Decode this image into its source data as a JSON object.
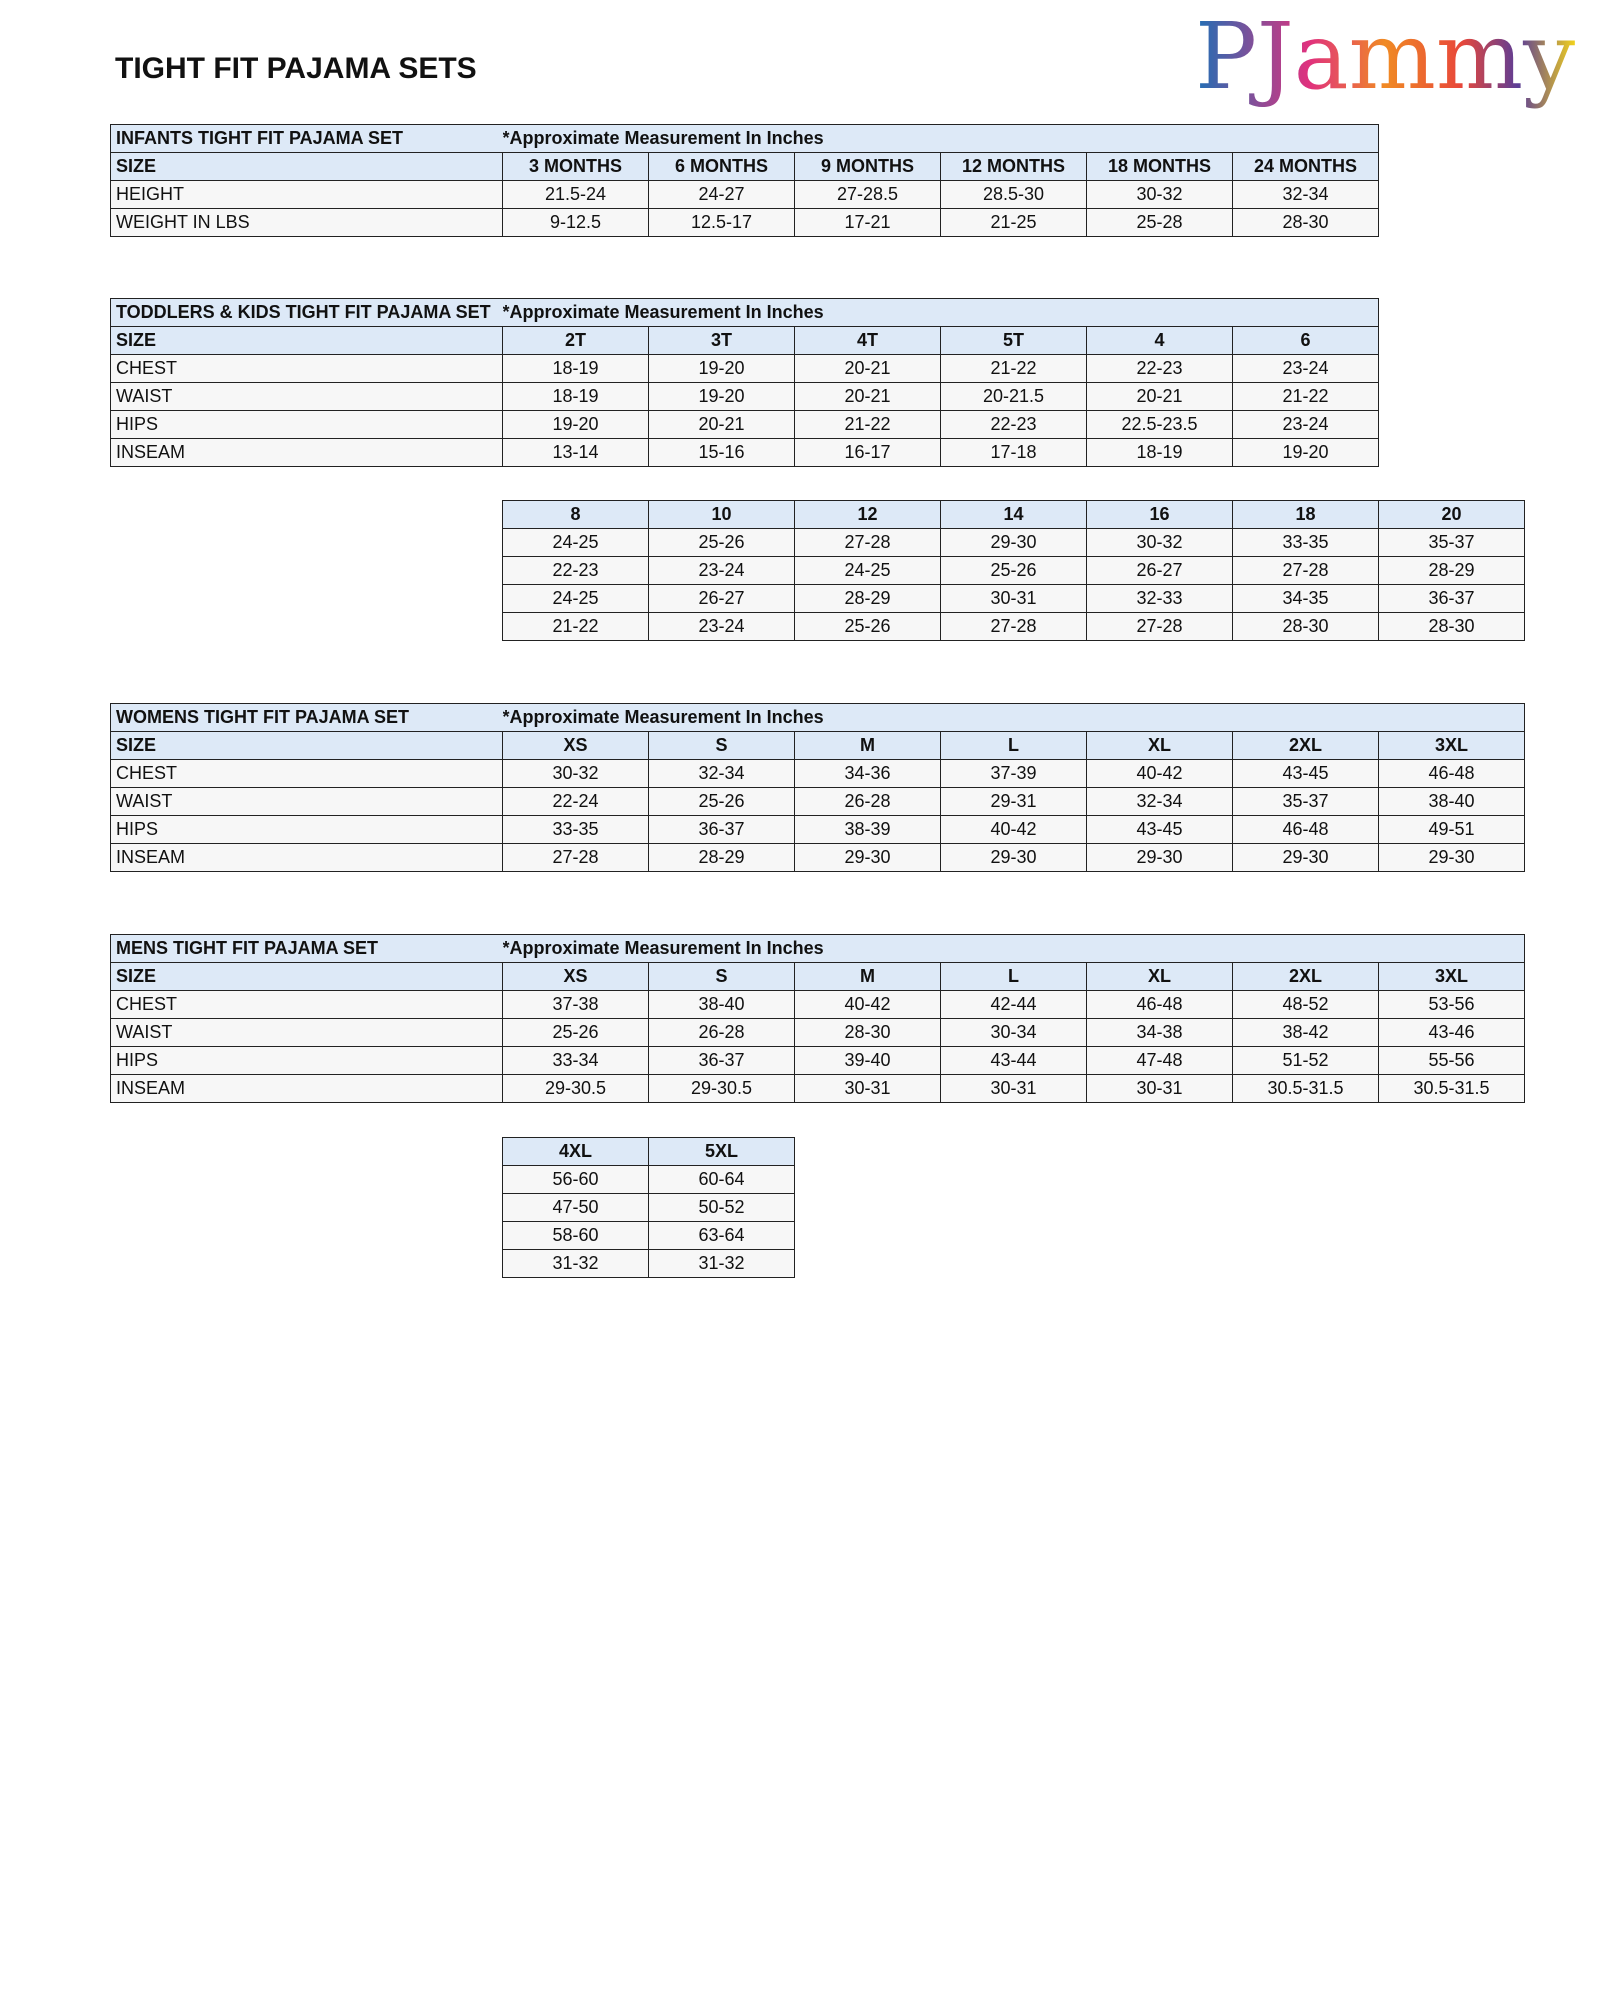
{
  "header": {
    "title": "TIGHT FIT PAJAMA SETS",
    "logo": "PJammy"
  },
  "tables": [
    {
      "title": "INFANTS TIGHT FIT PAJAMA SET",
      "note": "*Approximate Measurement In Inches",
      "header": [
        "SIZE",
        "3 MONTHS",
        "6 MONTHS",
        "9 MONTHS",
        "12 MONTHS",
        "18 MONTHS",
        "24 MONTHS"
      ],
      "rows": [
        [
          "HEIGHT",
          "21.5-24",
          "24-27",
          "27-28.5",
          "28.5-30",
          "30-32",
          "32-34"
        ],
        [
          "WEIGHT IN LBS",
          "9-12.5",
          "12.5-17",
          "17-21",
          "21-25",
          "25-28",
          "28-30"
        ]
      ]
    },
    {
      "title": "TODDLERS & KIDS TIGHT FIT PAJAMA SET",
      "note": "*Approximate Measurement In Inches",
      "header": [
        "SIZE",
        "2T",
        "3T",
        "4T",
        "5T",
        "4",
        "6"
      ],
      "rows": [
        [
          "CHEST",
          "18-19",
          "19-20",
          "20-21",
          "21-22",
          "22-23",
          "23-24"
        ],
        [
          "WAIST",
          "18-19",
          "19-20",
          "20-21",
          "20-21.5",
          "20-21",
          "21-22"
        ],
        [
          "HIPS",
          "19-20",
          "20-21",
          "21-22",
          "22-23",
          "22.5-23.5",
          "23-24"
        ],
        [
          "INSEAM",
          "13-14",
          "15-16",
          "16-17",
          "17-18",
          "18-19",
          "19-20"
        ]
      ]
    },
    {
      "header": [
        "8",
        "10",
        "12",
        "14",
        "16",
        "18",
        "20"
      ],
      "rows": [
        [
          "24-25",
          "25-26",
          "27-28",
          "29-30",
          "30-32",
          "33-35",
          "35-37"
        ],
        [
          "22-23",
          "23-24",
          "24-25",
          "25-26",
          "26-27",
          "27-28",
          "28-29"
        ],
        [
          "24-25",
          "26-27",
          "28-29",
          "30-31",
          "32-33",
          "34-35",
          "36-37"
        ],
        [
          "21-22",
          "23-24",
          "25-26",
          "27-28",
          "27-28",
          "28-30",
          "28-30"
        ]
      ]
    },
    {
      "title": "WOMENS TIGHT FIT PAJAMA SET",
      "note": "*Approximate Measurement In Inches",
      "header": [
        "SIZE",
        "XS",
        "S",
        "M",
        "L",
        "XL",
        "2XL",
        "3XL"
      ],
      "rows": [
        [
          "CHEST",
          "30-32",
          "32-34",
          "34-36",
          "37-39",
          "40-42",
          "43-45",
          "46-48"
        ],
        [
          "WAIST",
          "22-24",
          "25-26",
          "26-28",
          "29-31",
          "32-34",
          "35-37",
          "38-40"
        ],
        [
          "HIPS",
          "33-35",
          "36-37",
          "38-39",
          "40-42",
          "43-45",
          "46-48",
          "49-51"
        ],
        [
          "INSEAM",
          "27-28",
          "28-29",
          "29-30",
          "29-30",
          "29-30",
          "29-30",
          "29-30"
        ]
      ]
    },
    {
      "title": "MENS TIGHT FIT PAJAMA SET",
      "note": "*Approximate Measurement In Inches",
      "header": [
        "SIZE",
        "XS",
        "S",
        "M",
        "L",
        "XL",
        "2XL",
        "3XL"
      ],
      "rows": [
        [
          "CHEST",
          "37-38",
          "38-40",
          "40-42",
          "42-44",
          "46-48",
          "48-52",
          "53-56"
        ],
        [
          "WAIST",
          "25-26",
          "26-28",
          "28-30",
          "30-34",
          "34-38",
          "38-42",
          "43-46"
        ],
        [
          "HIPS",
          "33-34",
          "36-37",
          "39-40",
          "43-44",
          "47-48",
          "51-52",
          "55-56"
        ],
        [
          "INSEAM",
          "29-30.5",
          "29-30.5",
          "30-31",
          "30-31",
          "30-31",
          "30.5-31.5",
          "30.5-31.5"
        ]
      ]
    },
    {
      "header": [
        "4XL",
        "5XL"
      ],
      "rows": [
        [
          "56-60",
          "60-64"
        ],
        [
          "47-50",
          "50-52"
        ],
        [
          "58-60",
          "63-64"
        ],
        [
          "31-32",
          "31-32"
        ]
      ]
    }
  ]
}
